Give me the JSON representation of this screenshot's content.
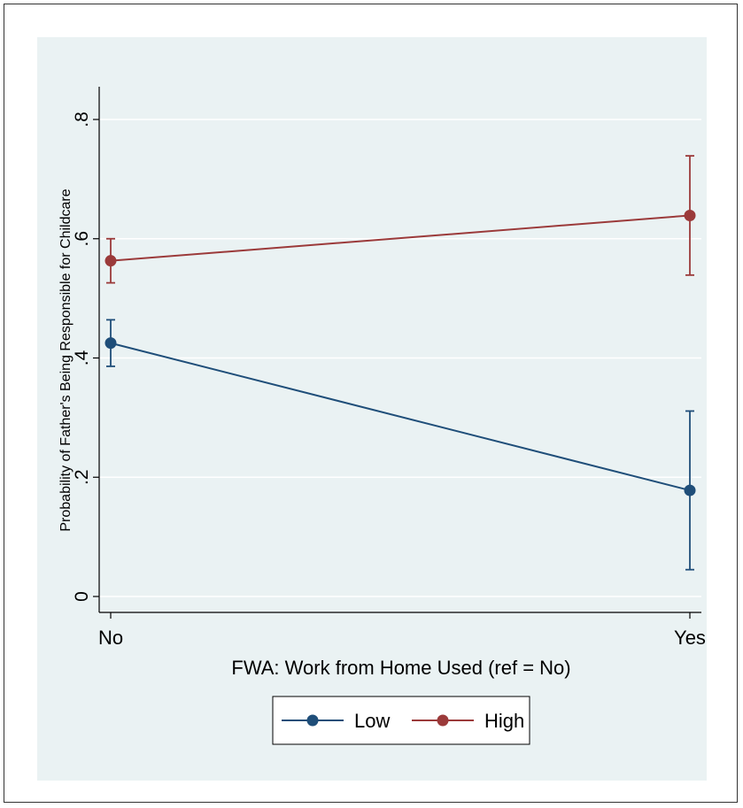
{
  "chart_data": {
    "type": "line",
    "title": "",
    "xlabel": "FWA: Work from Home Used (ref = No)",
    "ylabel": "Probability of Father's Being Responsible for Childcare",
    "categories": [
      "No",
      "Yes"
    ],
    "yticks": [
      0,
      0.2,
      0.4,
      0.6,
      0.8
    ],
    "ytick_labels": [
      "0",
      ".2",
      ".4",
      ".6",
      ".8"
    ],
    "ylim": [
      0,
      0.8
    ],
    "grid": true,
    "legend_position": "bottom",
    "series": [
      {
        "name": "Low",
        "color": "#1f4e79",
        "values": [
          0.425,
          0.178
        ],
        "ci_low": [
          0.386,
          0.045
        ],
        "ci_high": [
          0.464,
          0.311
        ]
      },
      {
        "name": "High",
        "color": "#9b3a3a",
        "values": [
          0.563,
          0.639
        ],
        "ci_low": [
          0.526,
          0.539
        ],
        "ci_high": [
          0.6,
          0.739
        ]
      }
    ],
    "colors": {
      "plot_background": "#eaf2f3",
      "gridline": "#ffffff"
    }
  }
}
